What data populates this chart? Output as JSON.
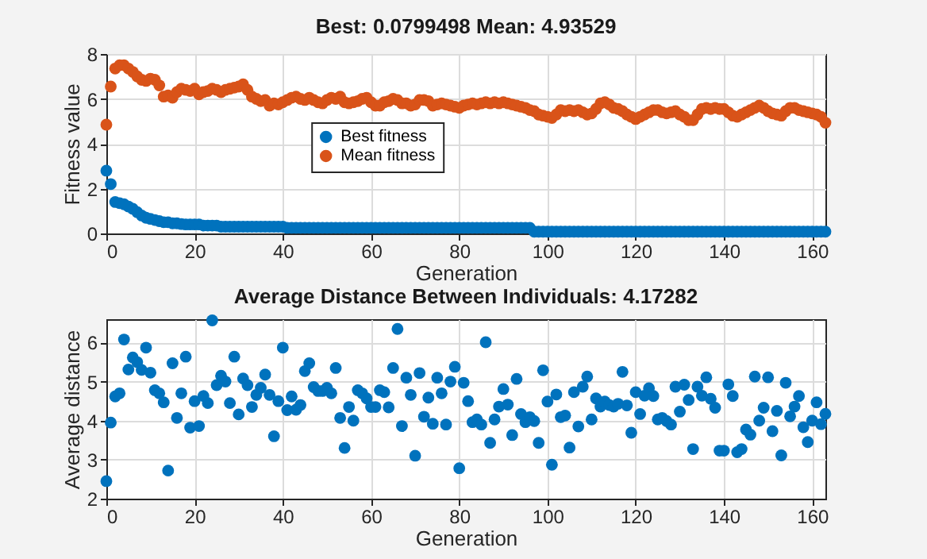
{
  "chart_data": [
    {
      "type": "scatter",
      "title": "Best: 0.0799498 Mean: 4.93529",
      "xlabel": "Generation",
      "ylabel": "Fitness value",
      "xlim": [
        0,
        163
      ],
      "xticks": [
        0,
        20,
        40,
        60,
        80,
        100,
        120,
        140,
        160
      ],
      "ylim": [
        0,
        8
      ],
      "yticks": [
        0,
        2,
        4,
        6,
        8
      ],
      "grid": true,
      "legend": "center",
      "marker": "circle",
      "x": [
        0,
        1,
        2,
        3,
        4,
        5,
        6,
        7,
        8,
        9,
        10,
        11,
        12,
        13,
        14,
        15,
        16,
        17,
        18,
        19,
        20,
        21,
        22,
        23,
        24,
        25,
        26,
        27,
        28,
        29,
        30,
        31,
        32,
        33,
        34,
        35,
        36,
        37,
        38,
        39,
        40,
        41,
        42,
        43,
        44,
        45,
        46,
        47,
        48,
        49,
        50,
        51,
        52,
        53,
        54,
        55,
        56,
        57,
        58,
        59,
        60,
        61,
        62,
        63,
        64,
        65,
        66,
        67,
        68,
        69,
        70,
        71,
        72,
        73,
        74,
        75,
        76,
        77,
        78,
        79,
        80,
        81,
        82,
        83,
        84,
        85,
        86,
        87,
        88,
        89,
        90,
        91,
        92,
        93,
        94,
        95,
        96,
        97,
        98,
        99,
        100,
        101,
        102,
        103,
        104,
        105,
        106,
        107,
        108,
        109,
        110,
        111,
        112,
        113,
        114,
        115,
        116,
        117,
        118,
        119,
        120,
        121,
        122,
        123,
        124,
        125,
        126,
        127,
        128,
        129,
        130,
        131,
        132,
        133,
        134,
        135,
        136,
        137,
        138,
        139,
        140,
        141,
        142,
        143,
        144,
        145,
        146,
        147,
        148,
        149,
        150,
        151,
        152,
        153,
        154,
        155,
        156,
        157,
        158,
        159,
        160,
        161,
        162,
        163
      ],
      "series": [
        {
          "name": "Best fitness",
          "color": "#0072bd",
          "values": [
            2.8,
            2.2,
            1.4,
            1.35,
            1.3,
            1.2,
            1.1,
            0.95,
            0.8,
            0.7,
            0.65,
            0.6,
            0.55,
            0.5,
            0.5,
            0.45,
            0.45,
            0.42,
            0.4,
            0.4,
            0.4,
            0.4,
            0.35,
            0.35,
            0.35,
            0.35,
            0.3,
            0.3,
            0.3,
            0.3,
            0.3,
            0.3,
            0.3,
            0.3,
            0.3,
            0.3,
            0.3,
            0.3,
            0.3,
            0.3,
            0.3,
            0.25,
            0.25,
            0.25,
            0.25,
            0.25,
            0.25,
            0.25,
            0.25,
            0.25,
            0.25,
            0.25,
            0.25,
            0.25,
            0.25,
            0.25,
            0.25,
            0.25,
            0.25,
            0.25,
            0.25,
            0.25,
            0.25,
            0.25,
            0.25,
            0.25,
            0.25,
            0.25,
            0.25,
            0.25,
            0.25,
            0.25,
            0.25,
            0.25,
            0.25,
            0.25,
            0.25,
            0.25,
            0.25,
            0.25,
            0.25,
            0.25,
            0.25,
            0.25,
            0.25,
            0.25,
            0.25,
            0.25,
            0.25,
            0.25,
            0.25,
            0.25,
            0.25,
            0.25,
            0.25,
            0.25,
            0.25,
            0.08,
            0.08,
            0.08,
            0.08,
            0.08,
            0.08,
            0.08,
            0.08,
            0.08,
            0.08,
            0.08,
            0.08,
            0.08,
            0.08,
            0.08,
            0.08,
            0.08,
            0.08,
            0.08,
            0.08,
            0.08,
            0.08,
            0.08,
            0.08,
            0.08,
            0.08,
            0.08,
            0.08,
            0.08,
            0.08,
            0.08,
            0.08,
            0.08,
            0.08,
            0.08,
            0.08,
            0.08,
            0.08,
            0.08,
            0.08,
            0.08,
            0.08,
            0.08,
            0.08,
            0.08,
            0.08,
            0.08,
            0.08,
            0.08,
            0.08,
            0.08,
            0.08,
            0.08,
            0.08,
            0.08,
            0.08,
            0.08,
            0.08,
            0.08,
            0.08,
            0.08,
            0.08,
            0.08,
            0.08,
            0.08,
            0.08,
            0.0799498
          ]
        },
        {
          "name": "Mean fitness",
          "color": "#d95319",
          "values": [
            4.85,
            6.55,
            7.35,
            7.5,
            7.5,
            7.35,
            7.2,
            7.0,
            6.85,
            6.8,
            6.9,
            6.85,
            6.6,
            6.1,
            6.15,
            6.05,
            6.3,
            6.45,
            6.4,
            6.35,
            6.45,
            6.2,
            6.3,
            6.35,
            6.45,
            6.4,
            6.3,
            6.4,
            6.45,
            6.5,
            6.55,
            6.65,
            6.4,
            6.1,
            6.0,
            5.9,
            5.95,
            5.7,
            5.8,
            5.75,
            5.85,
            5.95,
            6.05,
            6.1,
            6.0,
            5.95,
            6.05,
            5.95,
            5.85,
            5.8,
            5.95,
            6.05,
            6.0,
            6.1,
            5.85,
            5.8,
            5.85,
            5.9,
            6.0,
            6.05,
            5.85,
            5.7,
            5.7,
            5.85,
            5.9,
            6.0,
            5.95,
            5.8,
            5.8,
            5.7,
            5.75,
            5.95,
            5.95,
            5.9,
            5.7,
            5.75,
            5.8,
            5.75,
            5.7,
            5.65,
            5.6,
            5.7,
            5.75,
            5.8,
            5.75,
            5.8,
            5.85,
            5.8,
            5.85,
            5.8,
            5.85,
            5.8,
            5.75,
            5.7,
            5.65,
            5.6,
            5.5,
            5.45,
            5.3,
            5.25,
            5.2,
            5.15,
            5.3,
            5.5,
            5.45,
            5.5,
            5.45,
            5.5,
            5.4,
            5.3,
            5.35,
            5.55,
            5.8,
            5.85,
            5.75,
            5.6,
            5.55,
            5.45,
            5.3,
            5.2,
            5.1,
            5.2,
            5.3,
            5.4,
            5.5,
            5.5,
            5.4,
            5.35,
            5.4,
            5.45,
            5.3,
            5.2,
            5.05,
            5.05,
            5.3,
            5.55,
            5.6,
            5.55,
            5.6,
            5.55,
            5.55,
            5.4,
            5.25,
            5.2,
            5.3,
            5.4,
            5.5,
            5.6,
            5.7,
            5.6,
            5.45,
            5.35,
            5.3,
            5.25,
            5.45,
            5.6,
            5.6,
            5.5,
            5.45,
            5.4,
            5.35,
            5.3,
            5.2,
            4.93529
          ]
        }
      ]
    },
    {
      "type": "scatter",
      "title": "Average Distance Between Individuals: 4.17282",
      "xlabel": "Generation",
      "ylabel": "Average distance",
      "xlim": [
        0,
        163
      ],
      "xticks": [
        0,
        20,
        40,
        60,
        80,
        100,
        120,
        140,
        160
      ],
      "ylim": [
        2,
        6.6
      ],
      "yticks": [
        2,
        3,
        4,
        5,
        6
      ],
      "grid": true,
      "marker": "circle",
      "color": "#0072bd",
      "x": [
        0,
        1,
        2,
        3,
        4,
        5,
        6,
        7,
        8,
        9,
        10,
        11,
        12,
        13,
        14,
        15,
        16,
        17,
        18,
        19,
        20,
        21,
        22,
        23,
        24,
        25,
        26,
        27,
        28,
        29,
        30,
        31,
        32,
        33,
        34,
        35,
        36,
        37,
        38,
        39,
        40,
        41,
        42,
        43,
        44,
        45,
        46,
        47,
        48,
        49,
        50,
        51,
        52,
        53,
        54,
        55,
        56,
        57,
        58,
        59,
        60,
        61,
        62,
        63,
        64,
        65,
        66,
        67,
        68,
        69,
        70,
        71,
        72,
        73,
        74,
        75,
        76,
        77,
        78,
        79,
        80,
        81,
        82,
        83,
        84,
        85,
        86,
        87,
        88,
        89,
        90,
        91,
        92,
        93,
        94,
        95,
        96,
        97,
        98,
        99,
        100,
        101,
        102,
        103,
        104,
        105,
        106,
        107,
        108,
        109,
        110,
        111,
        112,
        113,
        114,
        115,
        116,
        117,
        118,
        119,
        120,
        121,
        122,
        123,
        124,
        125,
        126,
        127,
        128,
        129,
        130,
        131,
        132,
        133,
        134,
        135,
        136,
        137,
        138,
        139,
        140,
        141,
        142,
        143,
        144,
        145,
        146,
        147,
        148,
        149,
        150,
        151,
        152,
        153,
        154,
        155,
        156,
        157,
        158,
        159,
        160,
        161,
        162,
        163
      ],
      "values": [
        2.45,
        3.95,
        4.62,
        4.7,
        6.08,
        5.31,
        5.62,
        5.5,
        5.3,
        5.87,
        5.23,
        4.78,
        4.7,
        4.47,
        2.72,
        5.47,
        4.07,
        4.7,
        5.64,
        3.82,
        4.5,
        3.86,
        4.63,
        4.45,
        6.57,
        4.91,
        5.15,
        5.0,
        4.45,
        5.64,
        4.16,
        5.08,
        4.91,
        4.35,
        4.66,
        4.84,
        5.18,
        4.66,
        3.6,
        4.5,
        5.87,
        4.27,
        4.62,
        4.28,
        4.4,
        5.27,
        5.47,
        4.86,
        4.76,
        4.76,
        4.84,
        4.7,
        5.35,
        4.07,
        3.3,
        4.35,
        4.0,
        4.78,
        4.7,
        4.57,
        4.35,
        4.35,
        4.78,
        4.73,
        4.34,
        5.35,
        6.35,
        3.86,
        5.1,
        4.66,
        3.1,
        5.22,
        4.1,
        4.59,
        3.92,
        5.1,
        4.7,
        3.9,
        5.0,
        5.38,
        2.78,
        4.97,
        4.5,
        3.96,
        4.03,
        3.9,
        6.01,
        3.43,
        4.03,
        4.36,
        4.81,
        4.41,
        3.63,
        5.07,
        4.17,
        3.96,
        4.09,
        3.99,
        3.43,
        5.29,
        4.49,
        2.87,
        4.67,
        4.09,
        4.13,
        3.31,
        4.73,
        3.85,
        4.87,
        5.13,
        4.03,
        4.57,
        4.36,
        4.49,
        4.4,
        4.36,
        4.43,
        5.25,
        4.39,
        3.69,
        4.73,
        4.17,
        4.64,
        4.83,
        4.63,
        4.03,
        4.07,
        3.99,
        3.9,
        4.87,
        4.23,
        4.92,
        4.53,
        3.27,
        4.87,
        4.64,
        5.11,
        4.56,
        4.33,
        3.23,
        3.23,
        4.93,
        4.63,
        3.19,
        3.27,
        3.77,
        3.64,
        5.13,
        4.0,
        4.33,
        5.11,
        3.73,
        4.25,
        3.11,
        4.97,
        4.11,
        4.36,
        4.63,
        3.83,
        3.45,
        4.0,
        4.47,
        3.91,
        4.17282
      ]
    }
  ]
}
